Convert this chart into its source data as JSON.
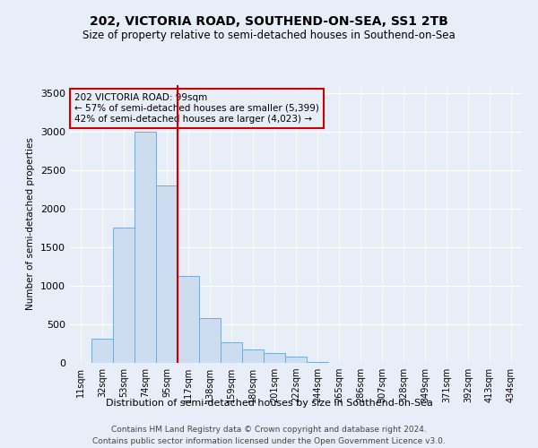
{
  "title_line1": "202, VICTORIA ROAD, SOUTHEND-ON-SEA, SS1 2TB",
  "title_line2": "Size of property relative to semi-detached houses in Southend-on-Sea",
  "xlabel": "Distribution of semi-detached houses by size in Southend-on-Sea",
  "ylabel": "Number of semi-detached properties",
  "footer_line1": "Contains HM Land Registry data © Crown copyright and database right 2024.",
  "footer_line2": "Contains public sector information licensed under the Open Government Licence v3.0.",
  "annotation_line1": "202 VICTORIA ROAD: 99sqm",
  "annotation_line2": "← 57% of semi-detached houses are smaller (5,399)",
  "annotation_line3": "42% of semi-detached houses are larger (4,023) →",
  "bar_color": "#cddcee",
  "bar_edgecolor": "#7aaacf",
  "marker_color": "#cc0000",
  "annotation_box_edgecolor": "#cc0000",
  "background_color": "#e8eef8",
  "plot_bg_color": "#e8eef8",
  "grid_color": "#ffffff",
  "categories": [
    "11sqm",
    "32sqm",
    "53sqm",
    "74sqm",
    "95sqm",
    "117sqm",
    "138sqm",
    "159sqm",
    "180sqm",
    "201sqm",
    "222sqm",
    "244sqm",
    "265sqm",
    "286sqm",
    "307sqm",
    "328sqm",
    "349sqm",
    "371sqm",
    "392sqm",
    "413sqm",
    "434sqm"
  ],
  "values": [
    5,
    310,
    1750,
    3000,
    2300,
    1130,
    580,
    270,
    170,
    130,
    80,
    10,
    0,
    0,
    0,
    0,
    0,
    0,
    0,
    0,
    0
  ],
  "marker_bin_index": 4,
  "ylim": [
    0,
    3600
  ],
  "yticks": [
    0,
    500,
    1000,
    1500,
    2000,
    2500,
    3000,
    3500
  ]
}
